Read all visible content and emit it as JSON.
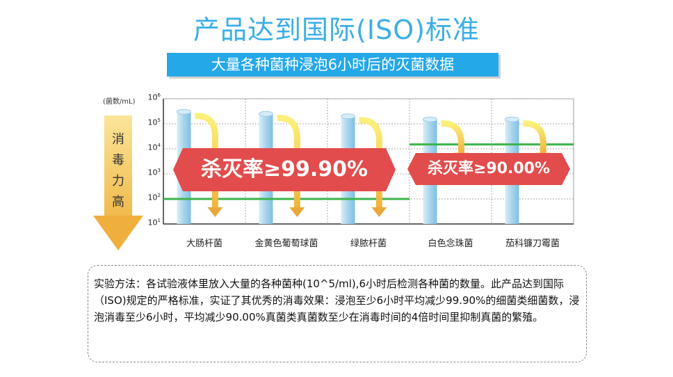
{
  "title": "产品达到国际(ISO)标准",
  "banner": "大量各种菌种浸泡6小时后的灭菌数据",
  "arrow_label": [
    "消",
    "毒",
    "力",
    "高"
  ],
  "kill_rate_1": "杀灭率≥99.90%",
  "kill_rate_2": "杀灭率≥90.00%",
  "method_text": "实验方法：各试验液体里放入大量的各种菌种(10^5/ml),6小时后检测各种菌的数量。此产品达到国际（ISO)规定的严格标准，实证了其优秀的消毒效果：浸泡至少6小时平均减少99.90%的细菌类细菌数，浸泡消毒至少6小时，平均减少90.00%真菌类真菌数至少在消毒时间的4倍时间里抑制真菌的繁殖。",
  "colors": {
    "title": "#3aaee6",
    "banner": "#25a8e8",
    "kill": "#e24c4c",
    "threshold": "#3cb44b",
    "bar": "#a8d4ec"
  },
  "chart_data": {
    "type": "bar",
    "ylabel": "(菌数/mL)",
    "log_scale": true,
    "ylim": [
      10,
      1000000
    ],
    "yticks": [
      1,
      2,
      3,
      4,
      5,
      6
    ],
    "categories": [
      "大肠杆菌",
      "金黄色葡萄球菌",
      "绿脓杆菌",
      "白色念珠菌",
      "茄科镰刀霉菌"
    ],
    "values": [
      300000,
      250000,
      200000,
      150000,
      150000
    ],
    "after_values": [
      100,
      100,
      100,
      15000,
      15000
    ],
    "threshold_lines": [
      {
        "y": 100,
        "categories": [
          0,
          1,
          2
        ]
      },
      {
        "y": 15000,
        "categories": [
          3,
          4
        ]
      }
    ]
  }
}
